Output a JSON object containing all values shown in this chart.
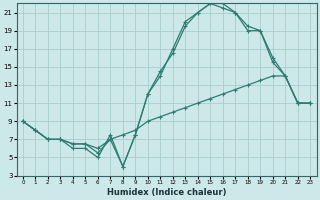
{
  "title": "",
  "xlabel": "Humidex (Indice chaleur)",
  "ylabel": "",
  "background_color": "#cce8e8",
  "grid_color": "#aacccc",
  "line_color": "#2e7d72",
  "xlim": [
    -0.5,
    23.5
  ],
  "ylim": [
    3,
    22
  ],
  "xticks": [
    0,
    1,
    2,
    3,
    4,
    5,
    6,
    7,
    8,
    9,
    10,
    11,
    12,
    13,
    14,
    15,
    16,
    17,
    18,
    19,
    20,
    21,
    22,
    23
  ],
  "yticks": [
    3,
    5,
    7,
    9,
    11,
    13,
    15,
    17,
    19,
    21
  ],
  "line1_x": [
    0,
    1,
    2,
    3,
    4,
    5,
    6,
    7,
    8,
    9,
    10,
    11,
    12,
    13,
    14,
    15,
    16,
    17,
    18,
    19,
    20,
    21,
    22,
    23
  ],
  "line1_y": [
    9,
    8,
    7,
    7,
    6,
    6,
    5,
    7.5,
    4,
    7.5,
    12,
    14,
    17,
    20,
    21,
    22,
    21.5,
    21,
    19,
    19,
    16,
    14,
    11,
    11
  ],
  "line2_x": [
    0,
    1,
    2,
    3,
    4,
    5,
    6,
    7,
    8,
    9,
    10,
    11,
    12,
    13,
    14,
    15,
    16,
    17,
    18,
    19,
    20,
    21,
    22,
    23
  ],
  "line2_y": [
    9,
    8,
    7,
    7,
    6.5,
    6.5,
    6,
    7,
    7.5,
    8,
    9,
    9.5,
    10,
    10.5,
    11,
    11.5,
    12,
    12.5,
    13,
    13.5,
    14,
    14,
    11,
    11
  ],
  "line3_x": [
    0,
    1,
    2,
    3,
    4,
    5,
    6,
    7,
    8,
    9,
    10,
    11,
    12,
    13,
    14,
    15,
    16,
    17,
    18,
    19,
    20,
    21,
    22,
    23
  ],
  "line3_y": [
    9,
    8,
    7,
    7,
    6.5,
    6.5,
    5.5,
    7,
    4,
    7.5,
    12,
    14.5,
    16.5,
    19.5,
    21,
    22,
    22,
    21,
    19.5,
    19,
    15.5,
    14,
    11,
    11
  ]
}
